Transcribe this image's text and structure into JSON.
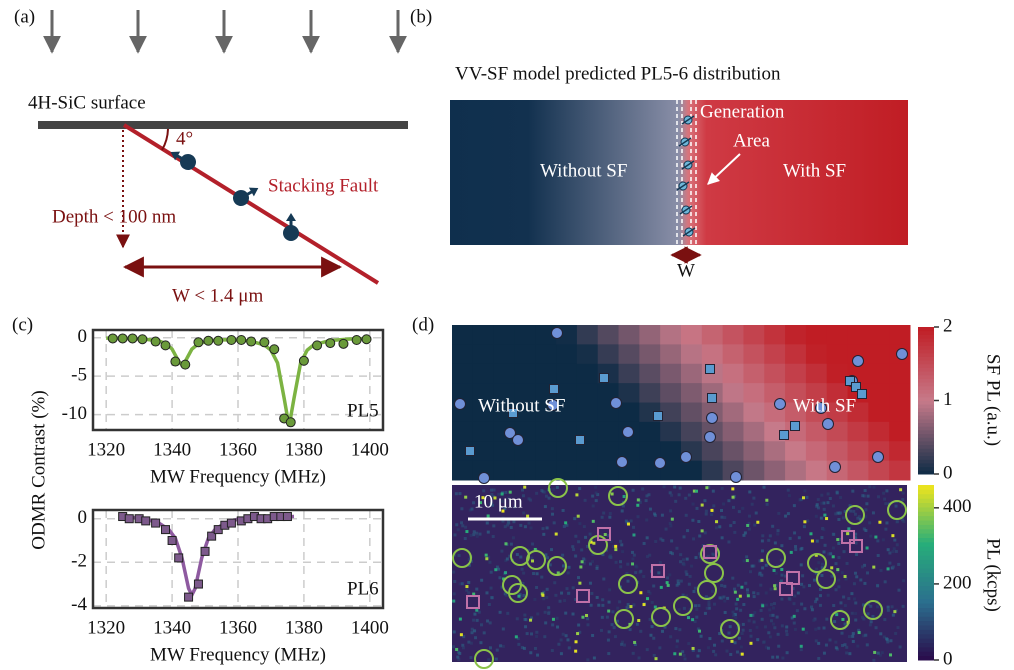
{
  "panels": {
    "a": {
      "label": "(a)",
      "surface": "4H-SiC surface",
      "angle": "4°",
      "fault": "Stacking Fault",
      "depth": "Depth < 100 nm",
      "width": "W < 1.4 μm"
    },
    "b": {
      "label": "(b)",
      "title": "VV-SF model predicted PL5-6 distribution",
      "left": "Without SF",
      "right": "With SF",
      "generation": "Generation",
      "area": "Area",
      "w": "W"
    },
    "c": {
      "label": "(c)",
      "ylabel": "ODMR Contrast (%)"
    },
    "d": {
      "label": "(d)",
      "left": "Without SF",
      "right": "With SF",
      "scale": "10 μm",
      "colorbars": [
        {
          "label": "SF PL (a.u.)",
          "lim": [
            0,
            2
          ],
          "ticks": [
            0,
            1,
            2
          ],
          "colors": [
            "#0d2b45",
            "#c77a8a",
            "#c01d24"
          ]
        },
        {
          "label": "PL (kcps)",
          "lim": [
            0,
            460
          ],
          "ticks": [
            0,
            200,
            400
          ],
          "colors": [
            "#2a0a4a",
            "#2b6f8e",
            "#27ae7a",
            "#f1e51d"
          ]
        }
      ]
    }
  },
  "chart_data": [
    {
      "type": "line",
      "xlabel": "MW Frequency (MHz)",
      "annotation": "PL5",
      "xlim": [
        1316,
        1404
      ],
      "xticks": [
        1320,
        1340,
        1360,
        1380,
        1400
      ],
      "ylim": [
        -12,
        1
      ],
      "yticks": [
        -10,
        -5,
        0
      ],
      "grid": true,
      "series": [
        {
          "mode": "line",
          "color": "#7cb342",
          "x": [
            1320,
            1324,
            1328,
            1332,
            1336,
            1338,
            1340,
            1342,
            1343,
            1344,
            1346,
            1348,
            1352,
            1356,
            1360,
            1364,
            1368,
            1370,
            1372,
            1374,
            1375.5,
            1377,
            1379,
            1381,
            1383,
            1388,
            1394,
            1400
          ],
          "values": [
            -0.06,
            -0.08,
            -0.12,
            -0.2,
            -0.43,
            -0.74,
            -1.48,
            -3.07,
            -3.55,
            -3.07,
            -1.49,
            -0.77,
            -0.35,
            -0.27,
            -0.3,
            -0.46,
            -0.95,
            -1.62,
            -3.29,
            -7.87,
            -11.52,
            -7.87,
            -3.28,
            -1.61,
            -0.93,
            -0.36,
            -0.17,
            -0.1
          ]
        },
        {
          "mode": "markers",
          "marker": "circle",
          "color": "#6a9a3a",
          "x": [
            1322,
            1325,
            1328,
            1331,
            1335,
            1338,
            1341,
            1344,
            1348,
            1351,
            1354,
            1358,
            1361,
            1364,
            1368,
            1371,
            1374,
            1376,
            1380,
            1384,
            1388,
            1392,
            1396,
            1399
          ],
          "values": [
            -0.1,
            -0.1,
            -0.1,
            -0.2,
            -0.5,
            -1,
            -3.1,
            -3.5,
            -0.6,
            -0.4,
            -0.4,
            -0.3,
            -0.3,
            -0.5,
            -0.6,
            -1.5,
            -10.5,
            -11,
            -3,
            -1,
            -0.7,
            -0.8,
            -0.3,
            -0.2
          ]
        }
      ]
    },
    {
      "type": "line",
      "xlabel": "MW Frequency (MHz)",
      "annotation": "PL6",
      "xlim": [
        1316,
        1404
      ],
      "xticks": [
        1320,
        1340,
        1360,
        1380,
        1400
      ],
      "ylim": [
        -4.1,
        0.4
      ],
      "yticks": [
        -4,
        -2,
        0
      ],
      "grid": true,
      "series": [
        {
          "mode": "line",
          "color": "#8e5aa0",
          "x": [
            1324,
            1328,
            1332,
            1336,
            1339,
            1341,
            1343,
            1344,
            1345,
            1346,
            1347,
            1348,
            1349,
            1351,
            1353,
            1356,
            1360,
            1365,
            1370,
            1377
          ],
          "values": [
            0.08,
            0.05,
            -0.02,
            -0.2,
            -0.5,
            -0.9,
            -1.8,
            -2.5,
            -3.2,
            -3.5,
            -3.2,
            -2.5,
            -1.8,
            -0.9,
            -0.5,
            -0.2,
            -0.02,
            0.05,
            0.08,
            0.1
          ]
        },
        {
          "mode": "markers",
          "marker": "square",
          "color": "#7d5a8c",
          "x": [
            1325,
            1327,
            1330,
            1332,
            1335,
            1338,
            1340,
            1342,
            1345,
            1348,
            1350,
            1352,
            1354,
            1356,
            1358,
            1361,
            1363,
            1365,
            1367,
            1369,
            1371,
            1373,
            1375
          ],
          "values": [
            0.1,
            0,
            0,
            -0.1,
            -0.2,
            -0.5,
            -1,
            -1.8,
            -3.6,
            -3,
            -1.5,
            -0.8,
            -0.5,
            -0.3,
            -0.2,
            -0.1,
            0,
            0.1,
            0,
            0,
            0.1,
            0.1,
            0.1
          ]
        }
      ]
    }
  ]
}
